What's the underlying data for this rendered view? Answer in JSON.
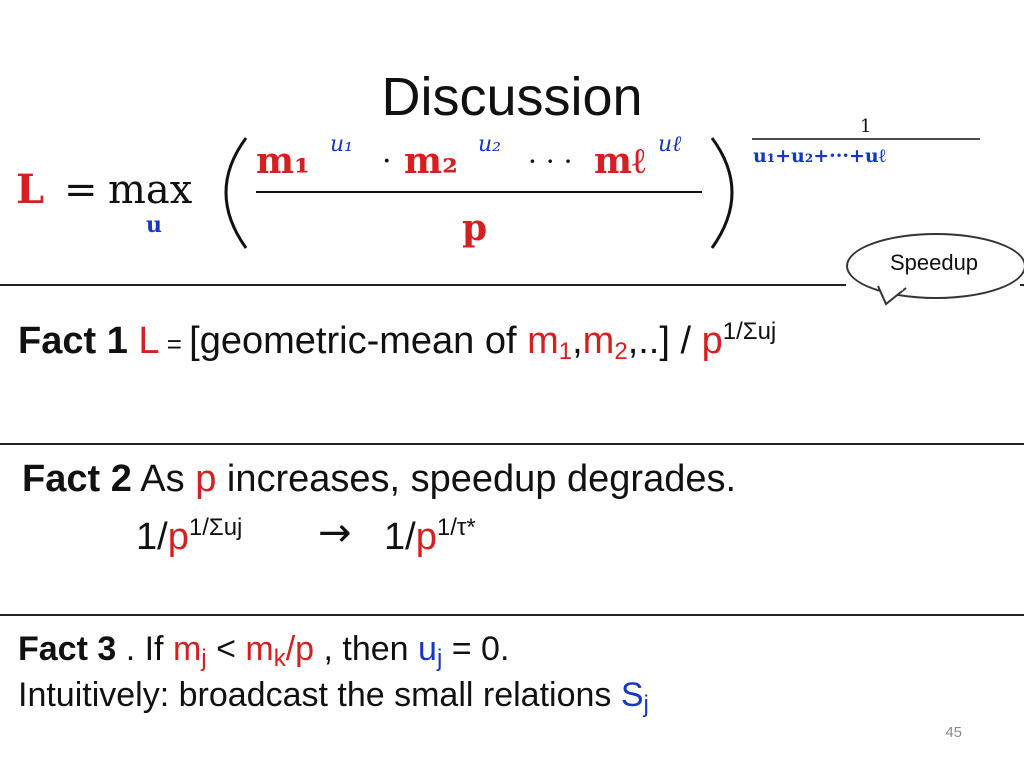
{
  "slide": {
    "title": "Discussion",
    "page_number": "45"
  },
  "formula": {
    "lhs": "L",
    "equals": "=",
    "max": "max",
    "max_subscript": "u",
    "numerator": {
      "m1": "m₁",
      "u1": "u₁",
      "dot": "·",
      "m2": "m₂",
      "u2": "u₂",
      "ellipsis": "· · ·",
      "ml": "mℓ",
      "ul": "uℓ"
    },
    "denominator": "p",
    "exponent_numerator": "1",
    "exponent_denominator": "u₁+u₂+···+uℓ"
  },
  "callout": {
    "label": "Speedup"
  },
  "fact1": {
    "label": "Fact 1",
    "L": "L",
    "eq": " = ",
    "text": "[geometric-mean of ",
    "m": "m",
    "sub1": "1",
    "comma": ",",
    "m2": "m",
    "sub2": "2",
    "rest": ",..] / ",
    "p": "p",
    "exp": "1/Σuj"
  },
  "fact2": {
    "label": "Fact 2",
    "as": " As ",
    "p": "p",
    "rest": " increases, speedup degrades.",
    "lhs_prefix": "1/",
    "lhs_p": "p",
    "lhs_exp": "1/Σuj",
    "arrow": "→",
    "rhs_prefix": "1/",
    "rhs_p": "p",
    "rhs_exp": "1/τ*"
  },
  "fact3": {
    "label": "Fact 3",
    "dot_if": " .  If ",
    "mj": "m",
    "mj_sub": "j",
    "lt": " < ",
    "mk": "m",
    "mk_sub": "k",
    "slash": "/",
    "p": "p",
    "then": "  , then  ",
    "uj": "u",
    "uj_sub": "j",
    "eq0": " = 0.",
    "line2": "Intuitively: broadcast the small relations ",
    "S": "S",
    "S_sub": "j"
  }
}
